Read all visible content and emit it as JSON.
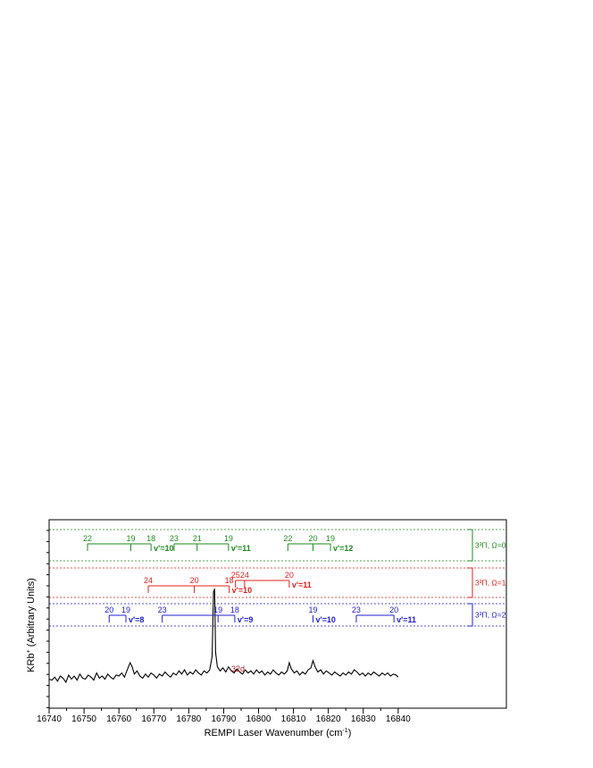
{
  "chart_data": {
    "type": "line",
    "xlabel": "REMPI Laser Wavenumber (cm",
    "xlabel_sup": "-1",
    "xlabel_end": ")",
    "ylabel": "KRb",
    "ylabel_sup": "+",
    "ylabel_rest": " (Arbitrary Units)",
    "xlim": [
      16740,
      16871
    ],
    "xticks": [
      "16740",
      "16750",
      "16760",
      "16770",
      "16780",
      "16790",
      "16800",
      "16810",
      "16820",
      "16830",
      "16840"
    ],
    "grid": false,
    "peak_label": "32d",
    "peak_label_color": "#b22222",
    "spectrum_color": "#000000",
    "spectrum": [
      [
        16740.0,
        0.1
      ],
      [
        16740.8,
        0.09
      ],
      [
        16741.6,
        0.12
      ],
      [
        16742.4,
        0.08
      ],
      [
        16743.2,
        0.13
      ],
      [
        16744.0,
        0.11
      ],
      [
        16744.8,
        0.07
      ],
      [
        16745.6,
        0.14
      ],
      [
        16746.4,
        0.1
      ],
      [
        16747.2,
        0.13
      ],
      [
        16748.0,
        0.09
      ],
      [
        16748.8,
        0.15
      ],
      [
        16749.6,
        0.11
      ],
      [
        16750.4,
        0.1
      ],
      [
        16751.2,
        0.14
      ],
      [
        16752.0,
        0.12
      ],
      [
        16752.8,
        0.09
      ],
      [
        16753.6,
        0.16
      ],
      [
        16754.4,
        0.11
      ],
      [
        16755.2,
        0.13
      ],
      [
        16756.0,
        0.1
      ],
      [
        16756.8,
        0.15
      ],
      [
        16757.6,
        0.12
      ],
      [
        16758.4,
        0.1
      ],
      [
        16759.2,
        0.14
      ],
      [
        16760.0,
        0.13
      ],
      [
        16760.8,
        0.16
      ],
      [
        16761.6,
        0.12
      ],
      [
        16762.4,
        0.19
      ],
      [
        16763.2,
        0.26
      ],
      [
        16763.8,
        0.22
      ],
      [
        16764.4,
        0.15
      ],
      [
        16765.2,
        0.18
      ],
      [
        16766.0,
        0.13
      ],
      [
        16766.8,
        0.11
      ],
      [
        16767.6,
        0.15
      ],
      [
        16768.4,
        0.12
      ],
      [
        16769.2,
        0.16
      ],
      [
        16770.0,
        0.14
      ],
      [
        16770.8,
        0.11
      ],
      [
        16771.6,
        0.15
      ],
      [
        16772.4,
        0.13
      ],
      [
        16773.2,
        0.17
      ],
      [
        16774.0,
        0.14
      ],
      [
        16774.8,
        0.12
      ],
      [
        16775.6,
        0.16
      ],
      [
        16776.4,
        0.14
      ],
      [
        16777.2,
        0.18
      ],
      [
        16778.0,
        0.15
      ],
      [
        16778.8,
        0.19
      ],
      [
        16779.6,
        0.14
      ],
      [
        16780.4,
        0.17
      ],
      [
        16781.2,
        0.15
      ],
      [
        16782.0,
        0.19
      ],
      [
        16782.8,
        0.16
      ],
      [
        16783.6,
        0.14
      ],
      [
        16784.4,
        0.18
      ],
      [
        16785.2,
        0.16
      ],
      [
        16786.0,
        0.19
      ],
      [
        16786.7,
        0.32
      ],
      [
        16787.1,
        0.95
      ],
      [
        16787.4,
        0.98
      ],
      [
        16787.7,
        0.36
      ],
      [
        16788.2,
        0.22
      ],
      [
        16789.0,
        0.18
      ],
      [
        16789.8,
        0.21
      ],
      [
        16790.6,
        0.17
      ],
      [
        16791.4,
        0.22
      ],
      [
        16792.2,
        0.18
      ],
      [
        16793.0,
        0.16
      ],
      [
        16793.8,
        0.2
      ],
      [
        16794.6,
        0.17
      ],
      [
        16795.4,
        0.15
      ],
      [
        16796.2,
        0.19
      ],
      [
        16797.0,
        0.16
      ],
      [
        16797.8,
        0.18
      ],
      [
        16798.6,
        0.15
      ],
      [
        16799.4,
        0.19
      ],
      [
        16800.2,
        0.16
      ],
      [
        16801.0,
        0.18
      ],
      [
        16801.8,
        0.14
      ],
      [
        16802.6,
        0.17
      ],
      [
        16803.4,
        0.15
      ],
      [
        16804.2,
        0.19
      ],
      [
        16805.0,
        0.16
      ],
      [
        16805.8,
        0.14
      ],
      [
        16806.6,
        0.17
      ],
      [
        16807.4,
        0.15
      ],
      [
        16808.2,
        0.18
      ],
      [
        16808.8,
        0.26
      ],
      [
        16809.4,
        0.2
      ],
      [
        16810.2,
        0.16
      ],
      [
        16811.0,
        0.18
      ],
      [
        16811.8,
        0.14
      ],
      [
        16812.6,
        0.17
      ],
      [
        16813.4,
        0.15
      ],
      [
        16814.2,
        0.19
      ],
      [
        16815.0,
        0.21
      ],
      [
        16815.6,
        0.28
      ],
      [
        16816.2,
        0.22
      ],
      [
        16817.0,
        0.17
      ],
      [
        16817.8,
        0.19
      ],
      [
        16818.6,
        0.15
      ],
      [
        16819.4,
        0.18
      ],
      [
        16820.2,
        0.16
      ],
      [
        16821.0,
        0.14
      ],
      [
        16821.8,
        0.17
      ],
      [
        16822.6,
        0.15
      ],
      [
        16823.4,
        0.13
      ],
      [
        16824.2,
        0.16
      ],
      [
        16825.0,
        0.14
      ],
      [
        16825.8,
        0.17
      ],
      [
        16826.6,
        0.15
      ],
      [
        16827.4,
        0.19
      ],
      [
        16828.2,
        0.17
      ],
      [
        16829.0,
        0.14
      ],
      [
        16829.8,
        0.16
      ],
      [
        16830.6,
        0.13
      ],
      [
        16831.4,
        0.16
      ],
      [
        16832.2,
        0.14
      ],
      [
        16833.0,
        0.17
      ],
      [
        16833.8,
        0.15
      ],
      [
        16834.6,
        0.13
      ],
      [
        16835.4,
        0.16
      ],
      [
        16836.2,
        0.14
      ],
      [
        16837.0,
        0.16
      ],
      [
        16837.8,
        0.13
      ],
      [
        16838.6,
        0.15
      ],
      [
        16839.4,
        0.14
      ],
      [
        16840.0,
        0.12
      ]
    ],
    "progressions": [
      {
        "color": "#1f8a1f",
        "state": "3³Π, Ω=0",
        "branches": [
          {
            "vlabel": "v'=10",
            "ticks": [
              {
                "x": 16751.0,
                "label": "22"
              },
              {
                "x": 16763.4,
                "label": "19"
              },
              {
                "x": 16769.2,
                "label": "18"
              }
            ]
          },
          {
            "vlabel": "v'=11",
            "ticks": [
              {
                "x": 16775.8,
                "label": "23"
              },
              {
                "x": 16782.4,
                "label": "21"
              },
              {
                "x": 16791.4,
                "label": "19"
              }
            ]
          },
          {
            "vlabel": "v'=12",
            "ticks": [
              {
                "x": 16808.4,
                "label": "22"
              },
              {
                "x": 16815.6,
                "label": "20"
              },
              {
                "x": 16820.6,
                "label": "19"
              }
            ]
          }
        ]
      },
      {
        "color": "#e02020",
        "state": "3³Π, Ω=1",
        "branches": [
          {
            "vlabel": "v'=10",
            "ticks": [
              {
                "x": 16768.4,
                "label": "24"
              },
              {
                "x": 16781.6,
                "label": "20"
              },
              {
                "x": 16791.6,
                "label": "18"
              }
            ]
          },
          {
            "vlabel": "v'=11",
            "ticks": [
              {
                "x": 16793.4,
                "label": "25"
              },
              {
                "x": 16796.0,
                "label": "24"
              },
              {
                "x": 16808.8,
                "label": "20"
              }
            ]
          }
        ]
      },
      {
        "color": "#2020d0",
        "state": "3³Π, Ω=2",
        "branches": [
          {
            "vlabel": "v'=8",
            "ticks": [
              {
                "x": 16757.2,
                "label": "20"
              },
              {
                "x": 16762.0,
                "label": "19"
              }
            ]
          },
          {
            "vlabel": "v'=9",
            "ticks": [
              {
                "x": 16772.4,
                "label": "23"
              },
              {
                "x": 16788.4,
                "label": "19"
              },
              {
                "x": 16793.2,
                "label": "18"
              }
            ]
          },
          {
            "vlabel": "v'=10",
            "ticks": [
              {
                "x": 16815.6,
                "label": "19"
              }
            ]
          },
          {
            "vlabel": "v'=11",
            "ticks": [
              {
                "x": 16828.0,
                "label": "23"
              },
              {
                "x": 16838.8,
                "label": "20"
              }
            ]
          }
        ]
      }
    ]
  }
}
